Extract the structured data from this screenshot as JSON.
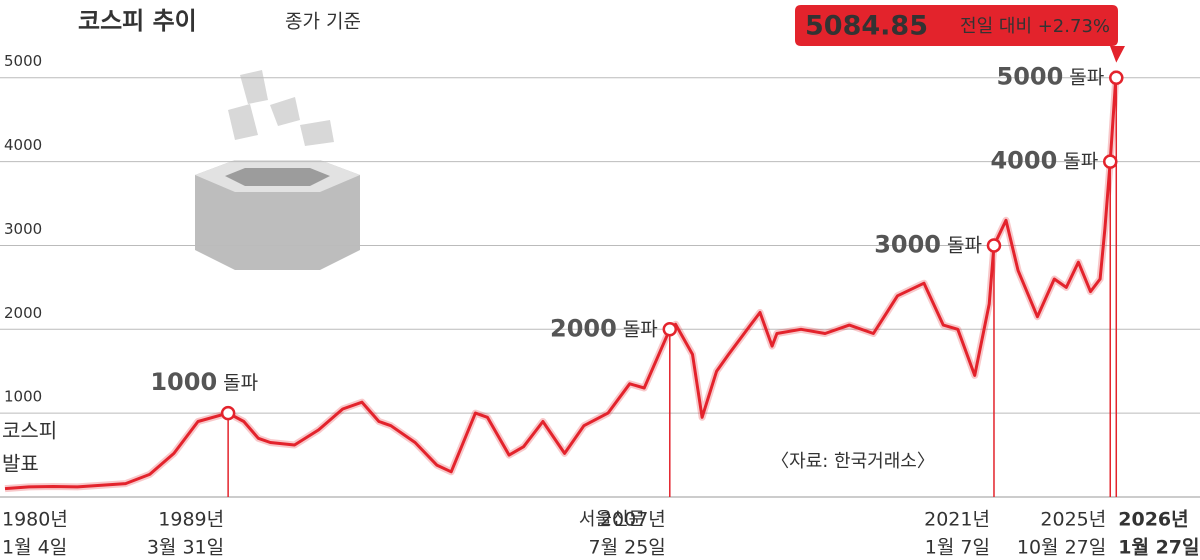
{
  "chart_data": {
    "type": "line",
    "title": "코스피 추이",
    "subtitle": "종가 기준",
    "source": "〈자료: 한국거래소〉",
    "start_note": [
      "코스피",
      "발표"
    ],
    "watermark": "서울신문",
    "change_label": "전일 대비 +2.73%",
    "xlim": [
      1980,
      2026.1
    ],
    "ylim": [
      0,
      5450
    ],
    "yticks": [
      1000,
      2000,
      3000,
      4000,
      5000
    ],
    "grid": true,
    "x": [
      1980,
      1981,
      1982,
      1983,
      1984,
      1985,
      1986,
      1987,
      1988,
      1989.25,
      1989.9,
      1990.5,
      1991,
      1992,
      1993,
      1994,
      1994.8,
      1995.5,
      1996,
      1997,
      1997.9,
      1998.5,
      1999.5,
      2000,
      2000.9,
      2001.5,
      2002.3,
      2003.2,
      2004,
      2005,
      2005.9,
      2006.5,
      2007.56,
      2007.8,
      2008.5,
      2008.9,
      2009.5,
      2010,
      2010.9,
      2011.3,
      2011.8,
      2012,
      2013,
      2014,
      2015,
      2016,
      2017,
      2018.1,
      2018.9,
      2019.5,
      2020.2,
      2020.8,
      2021.0,
      2021.5,
      2022,
      2022.8,
      2023.5,
      2024,
      2024.5,
      2025,
      2025.4,
      2025.6,
      2025.82,
      2026.07
    ],
    "series": [
      {
        "name": "코스피",
        "color": "#e3232c",
        "values": [
          100,
          120,
          125,
          120,
          140,
          160,
          270,
          520,
          900,
          1000,
          900,
          700,
          650,
          620,
          800,
          1050,
          1130,
          900,
          850,
          650,
          380,
          300,
          1000,
          950,
          500,
          600,
          900,
          520,
          850,
          1000,
          1350,
          1300,
          2000,
          2060,
          1700,
          950,
          1500,
          1700,
          2050,
          2200,
          1800,
          1950,
          2000,
          1950,
          2050,
          1950,
          2400,
          2550,
          2050,
          2000,
          1450,
          2300,
          3000,
          3300,
          2700,
          2150,
          2600,
          2500,
          2800,
          2450,
          2600,
          3200,
          4000,
          5084.85
        ]
      }
    ],
    "milestones": [
      {
        "x": 1989.25,
        "value": 1000,
        "label": "1000",
        "text": "돌파"
      },
      {
        "x": 2007.56,
        "value": 2000,
        "label": "2000",
        "text": "돌파"
      },
      {
        "x": 2021.0,
        "value": 3000,
        "label": "3000",
        "text": "돌파"
      },
      {
        "x": 2025.82,
        "value": 4000,
        "label": "4000",
        "text": "돌파"
      },
      {
        "x": 2026.07,
        "value": 5000,
        "label": "5000",
        "text": "돌파"
      }
    ],
    "date_labels": [
      {
        "x": 1980,
        "year": "1980년",
        "day": "1월 4일"
      },
      {
        "x": 1989.25,
        "year": "1989년",
        "day": "3월 31일"
      },
      {
        "x": 2007.56,
        "year": "2007년",
        "day": "7월 25일"
      },
      {
        "x": 2021.0,
        "year": "2021년",
        "day": "1월 7일"
      },
      {
        "x": 2025.82,
        "year": "2025년",
        "day": "10월 27일"
      },
      {
        "x": 2026.07,
        "year": "2026년",
        "day": "1월 27일"
      }
    ]
  }
}
